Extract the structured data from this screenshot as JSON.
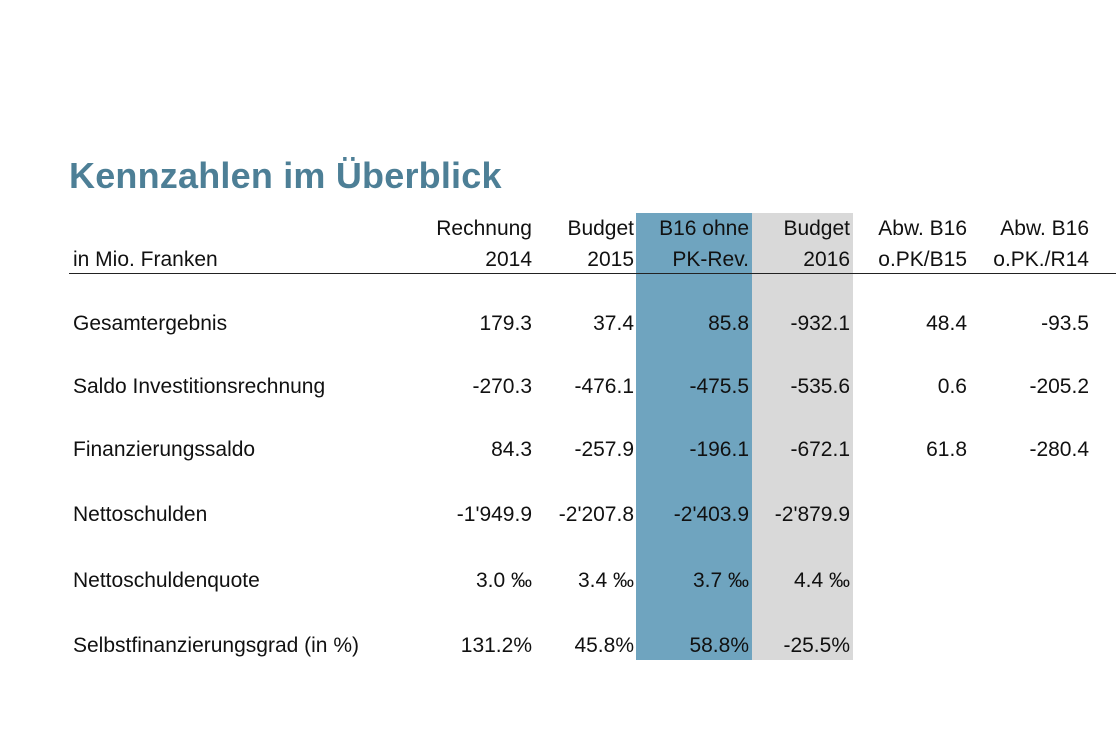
{
  "title": "Kennzahlen im Überblick",
  "unit_label": "in Mio. Franken",
  "colors": {
    "title": "#4d7f96",
    "highlight_blue": "#6fa4bf",
    "highlight_grey": "#d9d9d9"
  },
  "columns": [
    {
      "line1": "Rechnung",
      "line2": "2014"
    },
    {
      "line1": "Budget",
      "line2": "2015"
    },
    {
      "line1": "B16 ohne",
      "line2": "PK-Rev."
    },
    {
      "line1": "Budget",
      "line2": "2016"
    },
    {
      "line1": "Abw. B16",
      "line2": "o.PK/B15"
    },
    {
      "line1": "Abw. B16",
      "line2": "o.PK./R14"
    }
  ],
  "rows": [
    {
      "label": "Gesamtergebnis",
      "values": [
        "179.3",
        "37.4",
        "85.8",
        "-932.1",
        "48.4",
        "-93.5"
      ]
    },
    {
      "label": "Saldo Investitionsrechnung",
      "values": [
        "-270.3",
        "-476.1",
        "-475.5",
        "-535.6",
        "0.6",
        "-205.2"
      ]
    },
    {
      "label": "Finanzierungssaldo",
      "values": [
        "84.3",
        "-257.9",
        "-196.1",
        "-672.1",
        "61.8",
        "-280.4"
      ]
    },
    {
      "label": "Nettoschulden",
      "values": [
        "-1'949.9",
        "-2'207.8",
        "-2'403.9",
        "-2'879.9",
        "",
        ""
      ]
    },
    {
      "label": "Nettoschuldenquote",
      "values": [
        "3.0 ‰",
        "3.4 ‰",
        "3.7 ‰",
        "4.4 ‰",
        "",
        ""
      ]
    },
    {
      "label": "Selbstfinanzierungsgrad (in %)",
      "values": [
        "131.2%",
        "45.8%",
        "58.8%",
        "-25.5%",
        "",
        ""
      ]
    }
  ]
}
